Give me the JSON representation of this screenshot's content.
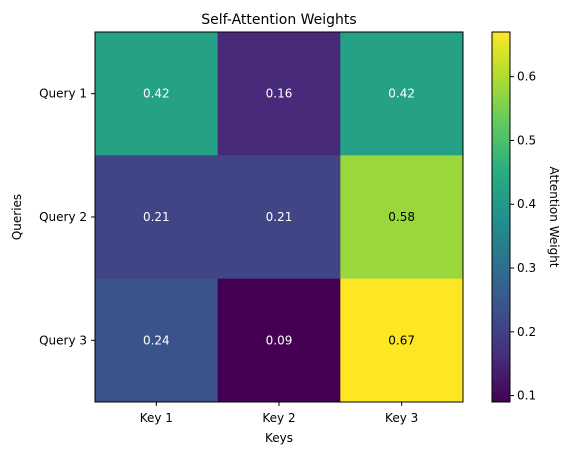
{
  "chart_data": {
    "type": "heatmap",
    "title": "Self-Attention Weights",
    "xlabel": "Keys",
    "ylabel": "Queries",
    "columns": [
      "Key 1",
      "Key 2",
      "Key 3"
    ],
    "rows": [
      "Query 1",
      "Query 2",
      "Query 3"
    ],
    "values": [
      [
        0.42,
        0.16,
        0.42
      ],
      [
        0.21,
        0.21,
        0.58
      ],
      [
        0.24,
        0.09,
        0.67
      ]
    ],
    "cell_labels": [
      [
        "0.42",
        "0.16",
        "0.42"
      ],
      [
        "0.21",
        "0.21",
        "0.58"
      ],
      [
        "0.24",
        "0.09",
        "0.67"
      ]
    ],
    "colormap": "viridis",
    "colorbar": {
      "label": "Attention Weight",
      "range": [
        0.09,
        0.67
      ],
      "ticks": [
        0.1,
        0.2,
        0.3,
        0.4,
        0.5,
        0.6
      ],
      "tick_labels": [
        "0.1",
        "0.2",
        "0.3",
        "0.4",
        "0.5",
        "0.6"
      ]
    },
    "grid": false
  }
}
